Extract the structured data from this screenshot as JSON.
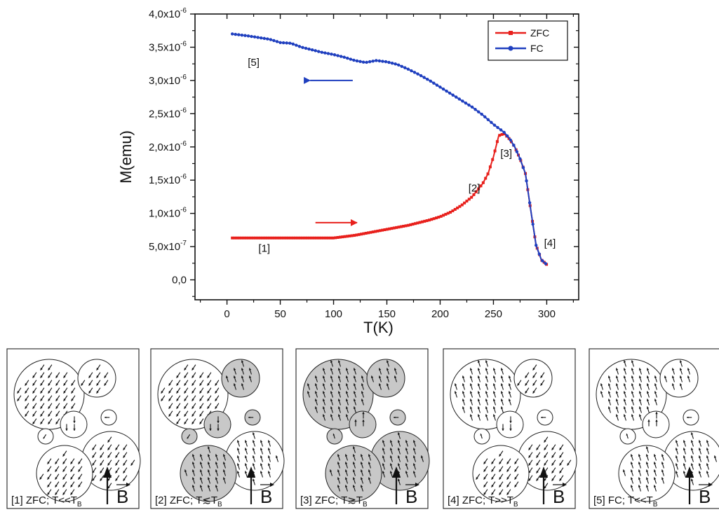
{
  "chart_data": {
    "type": "line",
    "xlabel": "T(K)",
    "ylabel": "M(emu)",
    "xlim": [
      -30,
      330
    ],
    "ylim": [
      -3e-07,
      4e-06
    ],
    "x_ticks": [
      0,
      50,
      100,
      150,
      200,
      250,
      300
    ],
    "y_ticks": [
      0,
      5e-07,
      1e-06,
      1.5e-06,
      2e-06,
      2.5e-06,
      3e-06,
      3.5e-06,
      4e-06
    ],
    "x_tick_labels": [
      "0",
      "50",
      "100",
      "150",
      "200",
      "250",
      "300"
    ],
    "y_tick_labels": [
      {
        "mant": "0,0",
        "exp": ""
      },
      {
        "mant": "5,0x10",
        "exp": "-7"
      },
      {
        "mant": "1,0x10",
        "exp": "-6"
      },
      {
        "mant": "1,5x10",
        "exp": "-6"
      },
      {
        "mant": "2,0x10",
        "exp": "-6"
      },
      {
        "mant": "2,5x10",
        "exp": "-6"
      },
      {
        "mant": "3,0x10",
        "exp": "-6"
      },
      {
        "mant": "3,5x10",
        "exp": "-6"
      },
      {
        "mant": "4,0x10",
        "exp": "-6"
      }
    ],
    "legend_position": "top-right",
    "series": [
      {
        "name": "ZFC",
        "color": "#e8201c",
        "marker": "square",
        "points": [
          [
            5,
            6.3e-07
          ],
          [
            10,
            6.3e-07
          ],
          [
            20,
            6.3e-07
          ],
          [
            30,
            6.3e-07
          ],
          [
            40,
            6.3e-07
          ],
          [
            50,
            6.3e-07
          ],
          [
            60,
            6.3e-07
          ],
          [
            70,
            6.3e-07
          ],
          [
            80,
            6.3e-07
          ],
          [
            90,
            6.3e-07
          ],
          [
            100,
            6.3e-07
          ],
          [
            110,
            6.5e-07
          ],
          [
            120,
            6.7e-07
          ],
          [
            130,
            7e-07
          ],
          [
            140,
            7.3e-07
          ],
          [
            150,
            7.6e-07
          ],
          [
            160,
            7.9e-07
          ],
          [
            170,
            8.2e-07
          ],
          [
            180,
            8.6e-07
          ],
          [
            190,
            9e-07
          ],
          [
            200,
            9.5e-07
          ],
          [
            210,
            1.02e-06
          ],
          [
            220,
            1.12e-06
          ],
          [
            230,
            1.25e-06
          ],
          [
            240,
            1.45e-06
          ],
          [
            245,
            1.6e-06
          ],
          [
            250,
            1.85e-06
          ],
          [
            255,
            2.17e-06
          ],
          [
            260,
            2.2e-06
          ],
          [
            265,
            2.12e-06
          ],
          [
            270,
            2e-06
          ],
          [
            275,
            1.82e-06
          ],
          [
            280,
            1.6e-06
          ],
          [
            285,
            1.05e-06
          ],
          [
            290,
            5.2e-07
          ],
          [
            295,
            3e-07
          ],
          [
            300,
            2.3e-07
          ]
        ]
      },
      {
        "name": "FC",
        "color": "#1f3fbf",
        "marker": "circle",
        "points": [
          [
            5,
            3.7e-06
          ],
          [
            20,
            3.67e-06
          ],
          [
            40,
            3.62e-06
          ],
          [
            50,
            3.57e-06
          ],
          [
            60,
            3.56e-06
          ],
          [
            70,
            3.5e-06
          ],
          [
            80,
            3.46e-06
          ],
          [
            90,
            3.42e-06
          ],
          [
            100,
            3.39e-06
          ],
          [
            110,
            3.35e-06
          ],
          [
            120,
            3.3e-06
          ],
          [
            130,
            3.27e-06
          ],
          [
            140,
            3.3e-06
          ],
          [
            150,
            3.28e-06
          ],
          [
            160,
            3.24e-06
          ],
          [
            170,
            3.17e-06
          ],
          [
            180,
            3.09e-06
          ],
          [
            190,
            3e-06
          ],
          [
            200,
            2.9e-06
          ],
          [
            210,
            2.8e-06
          ],
          [
            220,
            2.7e-06
          ],
          [
            230,
            2.6e-06
          ],
          [
            240,
            2.48e-06
          ],
          [
            250,
            2.34e-06
          ],
          [
            260,
            2.22e-06
          ],
          [
            265,
            2.13e-06
          ],
          [
            270,
            2e-06
          ],
          [
            275,
            1.82e-06
          ],
          [
            280,
            1.6e-06
          ],
          [
            285,
            1.05e-06
          ],
          [
            290,
            5.2e-07
          ],
          [
            295,
            3e-07
          ],
          [
            300,
            2.3e-07
          ]
        ]
      }
    ],
    "annotations": [
      {
        "text": "[1]",
        "x": 35,
        "y": 4.2e-07
      },
      {
        "text": "[2]",
        "x": 232,
        "y": 1.33e-06
      },
      {
        "text": "[3]",
        "x": 262,
        "y": 1.85e-06
      },
      {
        "text": "[4]",
        "x": 303,
        "y": 5e-07
      },
      {
        "text": "[5]",
        "x": 25,
        "y": 3.22e-06
      }
    ],
    "arrows": [
      {
        "color": "#1f3fbf",
        "from": [
          118,
          3e-06
        ],
        "to": [
          78,
          3e-06
        ]
      },
      {
        "color": "#e8201c",
        "from": [
          83,
          8.6e-07
        ],
        "to": [
          122,
          8.6e-07
        ]
      }
    ]
  },
  "panels": [
    {
      "prefix": "[1]  ZFC;  T<<T",
      "sub": "B",
      "shaded": [
        false,
        false,
        false,
        false,
        false,
        false
      ],
      "dirs": [
        "dl",
        "dl",
        "d",
        "l",
        "dl",
        "dl"
      ]
    },
    {
      "prefix": "[2]  ZFC;  T",
      "sym": "≲",
      "mid": "T",
      "sub": "B",
      "shaded": [
        false,
        true,
        true,
        true,
        true,
        false
      ],
      "dirs": [
        "dl",
        "ul",
        "d",
        "l",
        "dl",
        "ul"
      ]
    },
    {
      "prefix": "[3]  ZFC;  T",
      "sym": "≳",
      "mid": "T",
      "sub": "B",
      "shaded": [
        true,
        true,
        true,
        true,
        true,
        true
      ],
      "dirs": [
        "ul",
        "ul",
        "u",
        "l",
        "ul",
        "ul"
      ]
    },
    {
      "prefix": "[4]  ZFC;  T>>T",
      "sub": "B",
      "shaded": [
        false,
        false,
        false,
        false,
        false,
        false
      ],
      "dirs": [
        "ul",
        "dl",
        "d",
        "l",
        "ul",
        "dl"
      ]
    },
    {
      "prefix": "[5]  FC;  T<<T",
      "sub": "B",
      "shaded": [
        false,
        false,
        false,
        false,
        false,
        false
      ],
      "dirs": [
        "ul",
        "ul",
        "u",
        "l",
        "ul",
        "ul"
      ]
    }
  ],
  "field_label": "B"
}
